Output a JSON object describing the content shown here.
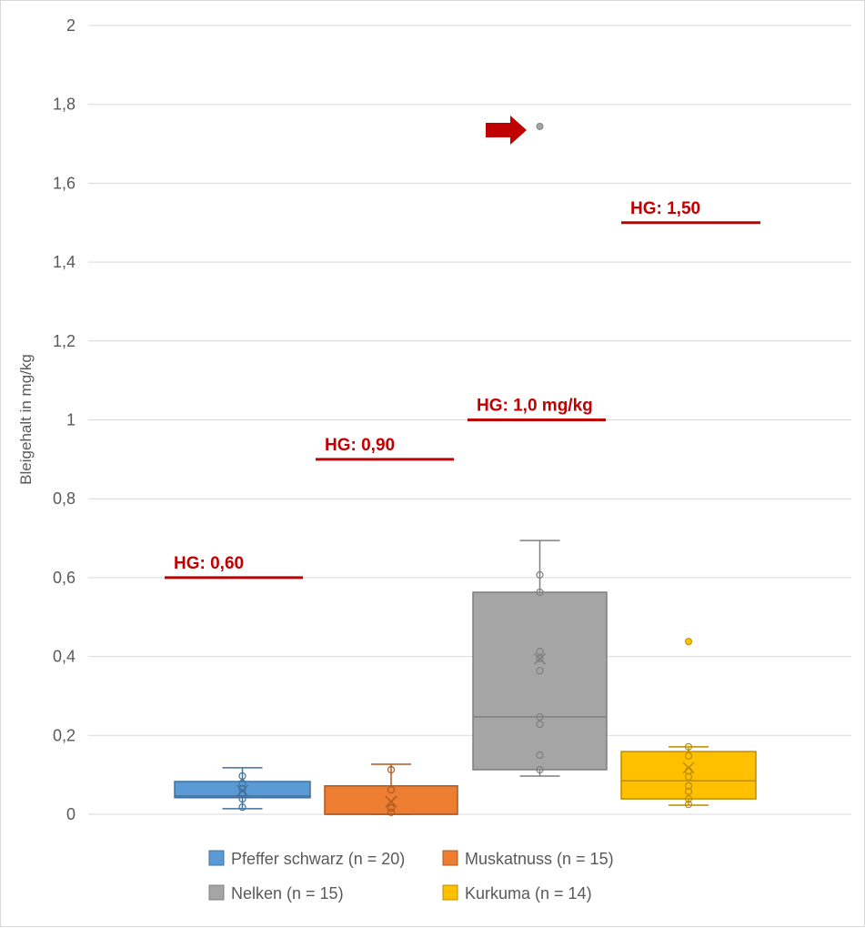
{
  "chart_data": {
    "type": "box",
    "ylabel": "Bleigehalt in mg/kg",
    "ylim": [
      0,
      2
    ],
    "yticks": [
      "0",
      "0,2",
      "0,4",
      "0,6",
      "0,8",
      "1",
      "1,2",
      "1,4",
      "1,6",
      "1,8",
      "2"
    ],
    "grid": true,
    "legend_position": "bottom",
    "series": [
      {
        "name": "Pfeffer schwarz (n = 20)",
        "color": "#5B9BD5",
        "min": 0.014,
        "q1": 0.042,
        "median": 0.046,
        "q3": 0.083,
        "max": 0.118,
        "mean": 0.06,
        "points": [
          0.097,
          0.079,
          0.065,
          0.053,
          0.039,
          0.018
        ],
        "outliers": []
      },
      {
        "name": "Muskatnuss (n = 15)",
        "color": "#ED7D31",
        "min": 0.0,
        "q1": 0.0,
        "median": 0.0,
        "q3": 0.072,
        "max": 0.127,
        "mean": 0.032,
        "points": [
          0.113,
          0.062,
          0.016,
          0.005
        ],
        "outliers": []
      },
      {
        "name": "Nelken (n = 15)",
        "color": "#A5A5A5",
        "min": 0.097,
        "q1": 0.113,
        "median": 0.247,
        "q3": 0.563,
        "max": 0.694,
        "mean": 0.394,
        "points": [
          0.607,
          0.563,
          0.413,
          0.395,
          0.364,
          0.247,
          0.228,
          0.15,
          0.113
        ],
        "outliers": [
          1.744
        ]
      },
      {
        "name": "Kurkuma (n = 14)",
        "color": "#FFC000",
        "min": 0.023,
        "q1": 0.039,
        "median": 0.085,
        "q3": 0.159,
        "max": 0.171,
        "mean": 0.118,
        "points": [
          0.171,
          0.148,
          0.11,
          0.095,
          0.072,
          0.058,
          0.039,
          0.025
        ],
        "outliers": [
          0.438
        ]
      }
    ],
    "annotations": [
      {
        "text": "HG: 0,60",
        "value": 0.6,
        "category": 0
      },
      {
        "text": "HG: 0,90",
        "value": 0.9,
        "category": 1
      },
      {
        "text": "HG: 1,0 mg/kg",
        "value": 1.0,
        "category": 2
      },
      {
        "text": "HG: 1,50",
        "value": 1.5,
        "category": 3
      }
    ],
    "annotation_color": "#C00000",
    "arrow": {
      "points_to": "Nelken outlier",
      "color": "#C00000"
    }
  }
}
